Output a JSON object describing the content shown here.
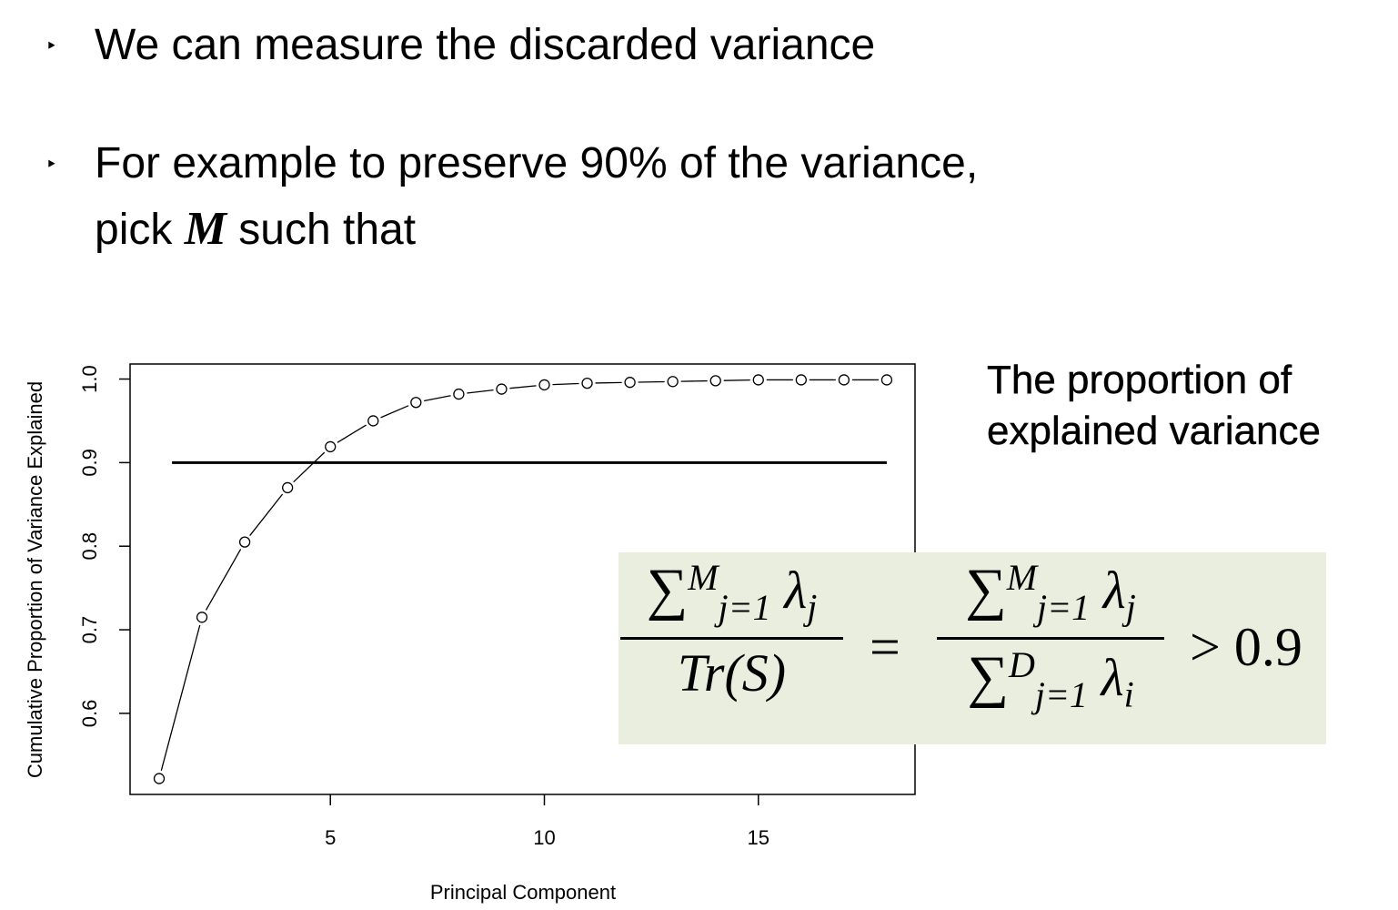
{
  "bullets": [
    {
      "text": "We can measure the discarded variance"
    },
    {
      "line1": "For example to preserve 90% of the variance,",
      "line2_pre": "pick",
      "line2_var": "M",
      "line2_post": "such that"
    }
  ],
  "side_title": "The proportion of explained variance",
  "formula": {
    "sum": "∑",
    "sup_M": "M",
    "sup_D": "D",
    "sub": "j=1",
    "lambda_j": "λj",
    "lambda_i": "λi",
    "trace": "Tr(S)",
    "equals": "=",
    "rhs": "> 0.9"
  },
  "chart_data": {
    "type": "line",
    "xlabel": "Principal Component",
    "ylabel": "Cumulative Proportion of Variance Explained",
    "x": [
      1,
      2,
      3,
      4,
      5,
      6,
      7,
      8,
      9,
      10,
      11,
      12,
      13,
      14,
      15,
      16,
      17,
      18
    ],
    "y": [
      0.522,
      0.715,
      0.805,
      0.87,
      0.919,
      0.95,
      0.972,
      0.982,
      0.988,
      0.993,
      0.995,
      0.996,
      0.997,
      0.998,
      0.999,
      0.999,
      0.999,
      0.999
    ],
    "xticks": [
      5,
      10,
      15
    ],
    "yticks": [
      0.6,
      0.7,
      0.8,
      0.9,
      1.0
    ],
    "ytick_labels": [
      "0.6",
      "0.7",
      "0.8",
      "0.9",
      "1.0"
    ],
    "xlim": [
      0.32,
      18.66
    ],
    "ylim": [
      0.503,
      1.018
    ],
    "hline": {
      "y": 0.9,
      "x_from": 1.3,
      "x_to": 18.0
    },
    "marker": "open-circle",
    "grid": false
  }
}
